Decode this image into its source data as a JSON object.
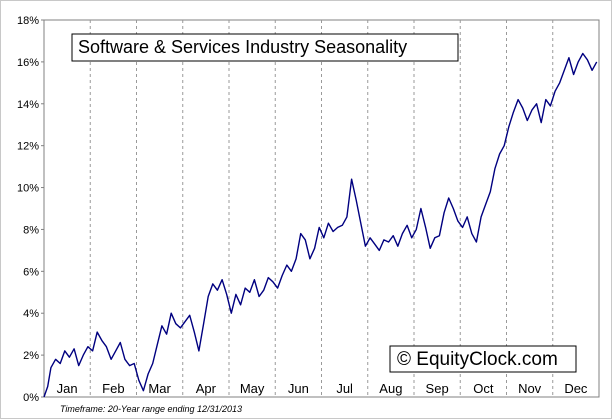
{
  "chart_data": {
    "type": "line",
    "title": "Software & Services Industry Seasonality",
    "watermark": "© EquityClock.com",
    "footnote": "Timeframe: 20-Year range ending 12/31/2013",
    "xlabel": "",
    "ylabel": "",
    "x_categories": [
      "Jan",
      "Feb",
      "Mar",
      "Apr",
      "May",
      "Jun",
      "Jul",
      "Aug",
      "Sep",
      "Oct",
      "Nov",
      "Dec"
    ],
    "y_ticks": [
      "0%",
      "2%",
      "4%",
      "6%",
      "8%",
      "10%",
      "12%",
      "14%",
      "16%",
      "18%"
    ],
    "ylim": [
      0,
      18
    ],
    "xlim": [
      0,
      12
    ],
    "grid": "vertical dashed",
    "line_color": "#000080",
    "series": [
      {
        "x": [
          0.0,
          0.08,
          0.15,
          0.25,
          0.35,
          0.45,
          0.55,
          0.65,
          0.75,
          0.85,
          0.95,
          1.05,
          1.15,
          1.25,
          1.35,
          1.45,
          1.55,
          1.65,
          1.75,
          1.85,
          1.95,
          2.05,
          2.15,
          2.25,
          2.35,
          2.45,
          2.55,
          2.65,
          2.75,
          2.85,
          2.95,
          3.05,
          3.15,
          3.25,
          3.35,
          3.45,
          3.55,
          3.65,
          3.75,
          3.85,
          3.95,
          4.05,
          4.15,
          4.25,
          4.35,
          4.45,
          4.55,
          4.65,
          4.75,
          4.85,
          4.95,
          5.05,
          5.15,
          5.25,
          5.35,
          5.45,
          5.55,
          5.65,
          5.75,
          5.85,
          5.95,
          6.05,
          6.15,
          6.25,
          6.35,
          6.45,
          6.55,
          6.65,
          6.75,
          6.85,
          6.95,
          7.05,
          7.15,
          7.25,
          7.35,
          7.45,
          7.55,
          7.65,
          7.75,
          7.85,
          7.95,
          8.05,
          8.15,
          8.25,
          8.35,
          8.45,
          8.55,
          8.65,
          8.75,
          8.85,
          8.95,
          9.05,
          9.15,
          9.25,
          9.35,
          9.45,
          9.55,
          9.65,
          9.75,
          9.85,
          9.95,
          10.05,
          10.15,
          10.25,
          10.35,
          10.45,
          10.55,
          10.65,
          10.75,
          10.85,
          10.95,
          11.05,
          11.15,
          11.25,
          11.35,
          11.45,
          11.55,
          11.65,
          11.75,
          11.85,
          11.95
        ],
        "y": [
          0.0,
          0.5,
          1.4,
          1.8,
          1.6,
          2.2,
          1.9,
          2.3,
          1.5,
          2.0,
          2.4,
          2.2,
          3.1,
          2.7,
          2.4,
          1.8,
          2.2,
          2.6,
          1.8,
          1.5,
          1.6,
          0.8,
          0.3,
          1.1,
          1.6,
          2.5,
          3.4,
          3.0,
          4.0,
          3.5,
          3.3,
          3.6,
          3.9,
          3.1,
          2.2,
          3.5,
          4.8,
          5.4,
          5.1,
          5.6,
          4.9,
          4.0,
          4.9,
          4.4,
          5.2,
          5.0,
          5.6,
          4.8,
          5.1,
          5.7,
          5.5,
          5.2,
          5.8,
          6.3,
          6.0,
          6.6,
          7.8,
          7.5,
          6.6,
          7.1,
          8.1,
          7.6,
          8.3,
          7.9,
          8.1,
          8.2,
          8.6,
          10.4,
          9.4,
          8.3,
          7.2,
          7.6,
          7.3,
          7.0,
          7.5,
          7.4,
          7.7,
          7.2,
          7.8,
          8.2,
          7.6,
          8.0,
          9.0,
          8.1,
          7.1,
          7.6,
          7.7,
          8.8,
          9.5,
          9.0,
          8.4,
          8.1,
          8.6,
          7.8,
          7.4,
          8.6,
          9.2,
          9.8,
          10.9,
          11.6,
          12.0,
          12.9,
          13.6,
          14.2,
          13.8,
          13.2,
          13.7,
          14.0,
          13.1,
          14.2,
          13.9,
          14.6,
          15.0,
          15.6,
          16.2,
          15.4,
          16.0,
          16.4,
          16.1,
          15.6,
          16.0
        ]
      }
    ]
  }
}
